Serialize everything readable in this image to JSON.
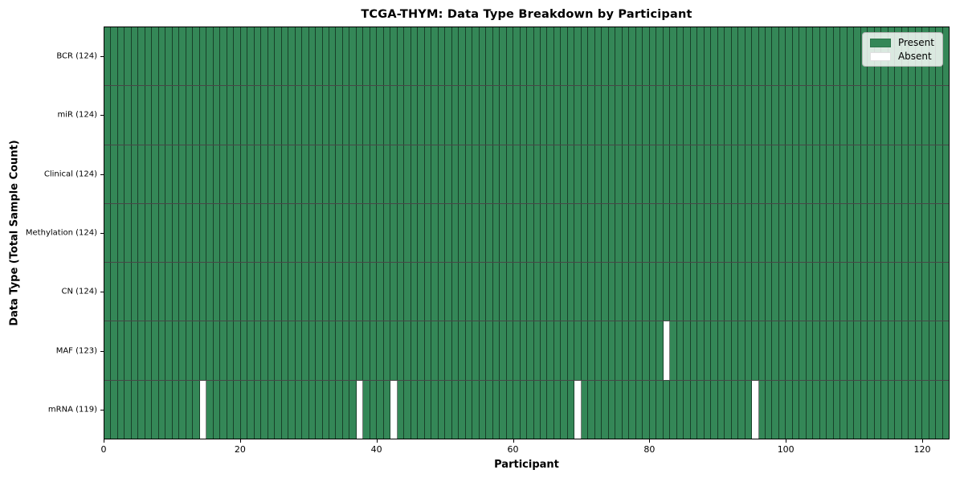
{
  "chart_data": {
    "type": "heatmap",
    "title": "TCGA-THYM: Data Type Breakdown by Participant",
    "xlabel": "Participant",
    "ylabel": "Data Type (Total Sample Count)",
    "x_range": [
      0,
      124
    ],
    "n_participants": 124,
    "x_ticks": [
      0,
      20,
      40,
      60,
      80,
      100,
      120
    ],
    "rows": [
      {
        "label": "BCR (124)",
        "data_type": "BCR",
        "total": 124,
        "absent_participants": []
      },
      {
        "label": "miR (124)",
        "data_type": "miR",
        "total": 124,
        "absent_participants": []
      },
      {
        "label": "Clinical (124)",
        "data_type": "Clinical",
        "total": 124,
        "absent_participants": []
      },
      {
        "label": "Methylation (124)",
        "data_type": "Methylation",
        "total": 124,
        "absent_participants": []
      },
      {
        "label": "CN (124)",
        "data_type": "CN",
        "total": 124,
        "absent_participants": []
      },
      {
        "label": "MAF (123)",
        "data_type": "MAF",
        "total": 123,
        "absent_participants": [
          82
        ]
      },
      {
        "label": "mRNA (119)",
        "data_type": "mRNA",
        "total": 119,
        "absent_participants": [
          14,
          37,
          42,
          69,
          95
        ]
      }
    ],
    "legend": {
      "position": "upper right",
      "entries": [
        {
          "label": "Present",
          "color": "#348757"
        },
        {
          "label": "Absent",
          "color": "#ffffff"
        }
      ]
    },
    "colors": {
      "present": "#348757",
      "absent": "#ffffff",
      "cell_edge": "rgba(0,0,0,0.52)",
      "row_separator": "rgba(0,0,0,0.72)",
      "axis": "#000000",
      "figure_background": "#ffffff"
    },
    "grid": false
  }
}
